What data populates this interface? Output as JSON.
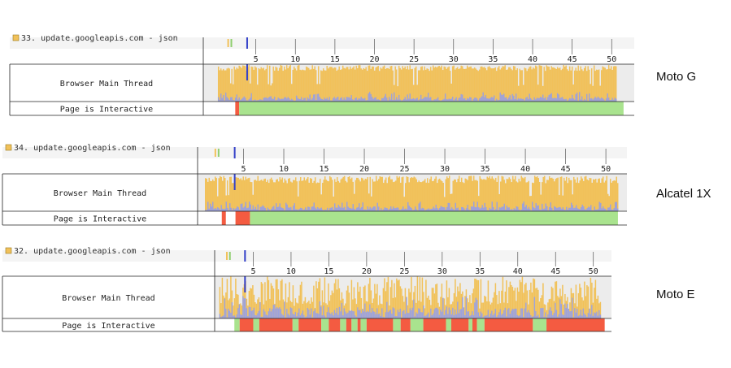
{
  "chart_data": [
    {
      "type": "bar",
      "device": "Moto G",
      "request_label": "33. update.googleapis.com - json",
      "thread_label": "Browser Main Thread",
      "interactive_label": "Page is Interactive",
      "xlim": [
        0,
        51
      ],
      "tick_values": [
        5,
        10,
        15,
        20,
        25,
        30,
        35,
        40,
        45,
        50
      ],
      "tick_labels": [
        "5",
        "10",
        "15",
        "20",
        "25",
        "30",
        "35",
        "40",
        "45",
        "50"
      ],
      "activity_start": 0.2,
      "activity_end": 50.5,
      "busy_level": 0.9,
      "busy_jitter": 0.08,
      "interactive_segments": [
        {
          "start": 2.4,
          "end": 2.9,
          "state": "blocked"
        },
        {
          "start": 2.9,
          "end": 51.5,
          "state": "interactive"
        }
      ]
    },
    {
      "type": "bar",
      "device": "Alcatel 1X",
      "request_label": "34. update.googleapis.com - json",
      "thread_label": "Browser Main Thread",
      "interactive_label": "Page is Interactive",
      "xlim": [
        0,
        51
      ],
      "tick_values": [
        5,
        10,
        15,
        20,
        25,
        30,
        35,
        40,
        45,
        50
      ],
      "tick_labels": [
        "5",
        "10",
        "15",
        "20",
        "25",
        "30",
        "35",
        "40",
        "45",
        "50"
      ],
      "activity_start": 0.2,
      "activity_end": 51.5,
      "busy_level": 0.85,
      "busy_jitter": 0.1,
      "interactive_segments": [
        {
          "start": 2.3,
          "end": 2.8,
          "state": "blocked"
        },
        {
          "start": 4.0,
          "end": 5.8,
          "state": "blocked"
        },
        {
          "start": 5.8,
          "end": 51.5,
          "state": "interactive"
        }
      ]
    },
    {
      "type": "bar",
      "device": "Moto E",
      "request_label": "32. update.googleapis.com - json",
      "thread_label": "Browser Main Thread",
      "interactive_label": "Page is Interactive",
      "xlim": [
        0,
        51
      ],
      "tick_values": [
        5,
        10,
        15,
        20,
        25,
        30,
        35,
        40,
        45,
        50
      ],
      "tick_labels": [
        "5",
        "10",
        "15",
        "20",
        "25",
        "30",
        "35",
        "40",
        "45",
        "50"
      ],
      "activity_start": 0.5,
      "activity_end": 51.0,
      "busy_level": 0.65,
      "busy_jitter": 0.35,
      "interactive_segments": [
        {
          "start": 2.5,
          "end": 3.2,
          "state": "interactive"
        },
        {
          "start": 3.2,
          "end": 5.0,
          "state": "blocked"
        },
        {
          "start": 5.0,
          "end": 5.8,
          "state": "interactive"
        },
        {
          "start": 5.8,
          "end": 10.2,
          "state": "blocked"
        },
        {
          "start": 10.2,
          "end": 11.0,
          "state": "interactive"
        },
        {
          "start": 11.0,
          "end": 14.0,
          "state": "blocked"
        },
        {
          "start": 14.0,
          "end": 15.0,
          "state": "interactive"
        },
        {
          "start": 15.0,
          "end": 16.5,
          "state": "blocked"
        },
        {
          "start": 16.5,
          "end": 17.3,
          "state": "interactive"
        },
        {
          "start": 17.3,
          "end": 18.0,
          "state": "blocked"
        },
        {
          "start": 18.0,
          "end": 18.8,
          "state": "interactive"
        },
        {
          "start": 18.8,
          "end": 19.2,
          "state": "blocked"
        },
        {
          "start": 19.2,
          "end": 20.0,
          "state": "interactive"
        },
        {
          "start": 20.0,
          "end": 23.5,
          "state": "blocked"
        },
        {
          "start": 23.5,
          "end": 24.5,
          "state": "interactive"
        },
        {
          "start": 24.5,
          "end": 25.8,
          "state": "blocked"
        },
        {
          "start": 25.8,
          "end": 27.5,
          "state": "interactive"
        },
        {
          "start": 27.5,
          "end": 30.5,
          "state": "blocked"
        },
        {
          "start": 30.5,
          "end": 31.2,
          "state": "interactive"
        },
        {
          "start": 31.2,
          "end": 33.5,
          "state": "blocked"
        },
        {
          "start": 33.5,
          "end": 34.0,
          "state": "interactive"
        },
        {
          "start": 34.0,
          "end": 34.6,
          "state": "blocked"
        },
        {
          "start": 34.6,
          "end": 35.6,
          "state": "interactive"
        },
        {
          "start": 35.6,
          "end": 42.0,
          "state": "blocked"
        },
        {
          "start": 42.0,
          "end": 43.8,
          "state": "interactive"
        },
        {
          "start": 43.8,
          "end": 51.5,
          "state": "blocked"
        }
      ]
    }
  ],
  "colors": {
    "busy": "#f1c15a",
    "script": "#9da2dc",
    "idle_bg": "#ececec",
    "interactive": "#a9e38e",
    "blocked": "#f45b41",
    "grid": "#555555",
    "marker_blue": "#3340c8",
    "marker_yellow": "#f1c15a",
    "marker_green": "#8fce6f"
  },
  "legend_icon": "yellow-square-icon"
}
